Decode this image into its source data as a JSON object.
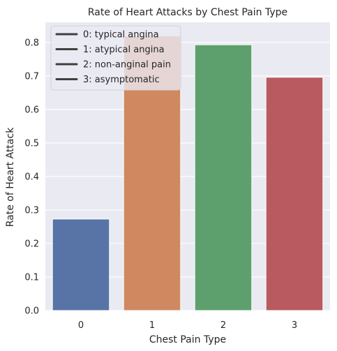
{
  "chart_data": {
    "type": "bar",
    "title": "Rate of Heart Attacks by Chest Pain Type",
    "xlabel": "Chest Pain Type",
    "ylabel": "Rate of Heart Attack",
    "categories": [
      "0",
      "1",
      "2",
      "3"
    ],
    "values": [
      0.273,
      0.82,
      0.793,
      0.696
    ],
    "ylim": [
      0,
      0.86
    ],
    "yticks": [
      0.0,
      0.1,
      0.2,
      0.3,
      0.4,
      0.5,
      0.6,
      0.7,
      0.8
    ],
    "ytick_labels": [
      "0.0",
      "0.1",
      "0.2",
      "0.3",
      "0.4",
      "0.5",
      "0.6",
      "0.7",
      "0.8"
    ],
    "grid": true,
    "legend": {
      "placement": "top-left",
      "entries": [
        "0: typical angina",
        "1: atypical angina",
        "2: non-anginal pain",
        "3: asymptomatic"
      ],
      "line_color": "#3f3f3f"
    },
    "colors": [
      "#5874a6",
      "#cf8860",
      "#5ea06d",
      "#b85a5f"
    ],
    "plot_background": "#eaeaf2"
  }
}
